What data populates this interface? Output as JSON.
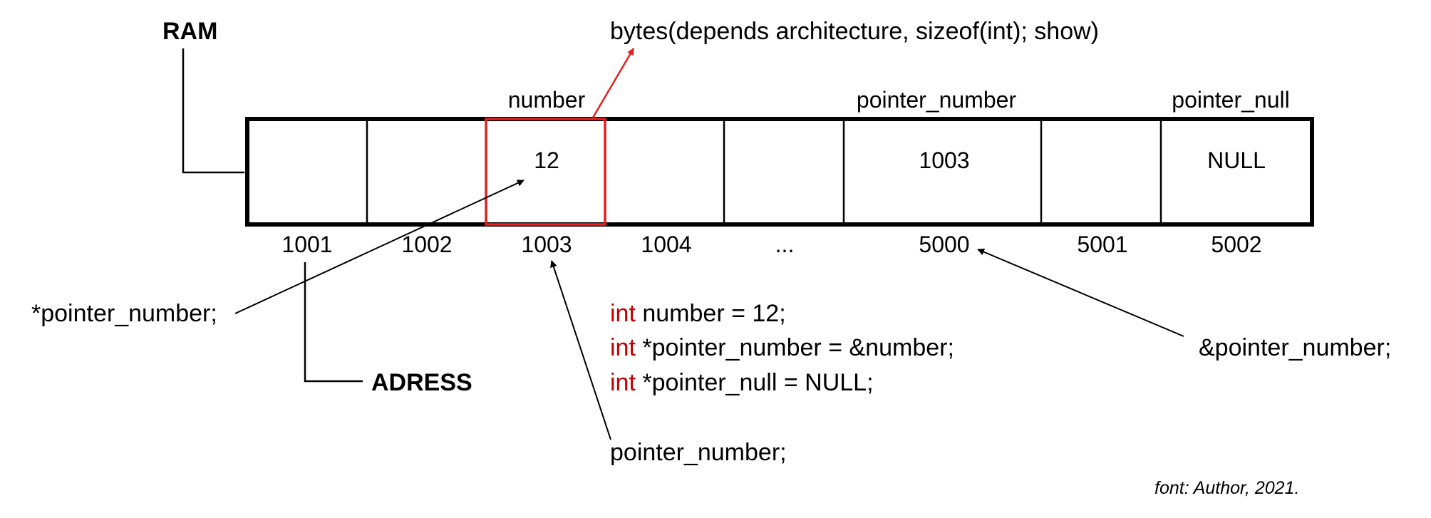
{
  "labels": {
    "ram": "RAM",
    "address": "ADRESS",
    "bytes_note": "bytes(depends architecture, sizeof(int); show)",
    "deref": "*pointer_number;",
    "pointer_value": "pointer_number;",
    "pointer_address": "&pointer_number;",
    "credit": "font: Author, 2021."
  },
  "variable_names": [
    "number",
    "pointer_number",
    "pointer_null"
  ],
  "cell_values": [
    "12",
    "1003",
    "NULL"
  ],
  "addresses": [
    "1001",
    "1002",
    "1003",
    "1004",
    "...",
    "5000",
    "5001",
    "5002"
  ],
  "code": [
    {
      "keyword": "int",
      "rest": " number = 12;"
    },
    {
      "keyword": "int",
      "rest": " *pointer_number = &number;"
    },
    {
      "keyword": "int",
      "rest": " *pointer_null = NULL;"
    }
  ],
  "colors": {
    "highlight": "#e02020",
    "keyword": "#c00000",
    "line": "#000000"
  }
}
